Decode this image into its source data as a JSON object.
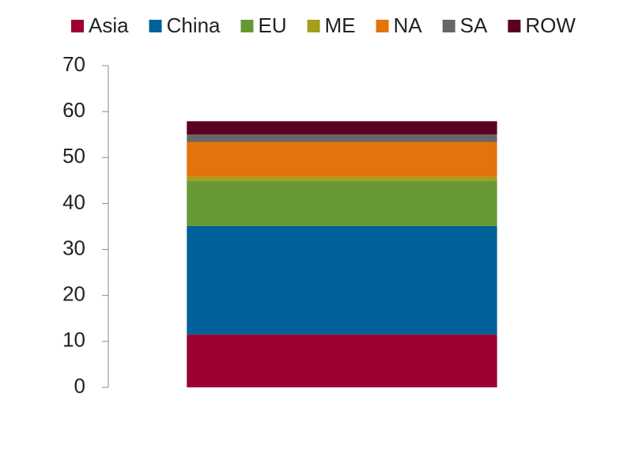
{
  "chart_data": {
    "type": "stacked-bar",
    "categories": [
      null
    ],
    "series": [
      {
        "name": "Asia",
        "color": "#9b0031",
        "values": [
          11.5
        ]
      },
      {
        "name": "China",
        "color": "#006199",
        "values": [
          23.6
        ]
      },
      {
        "name": "EU",
        "color": "#669933",
        "values": [
          9.8
        ]
      },
      {
        "name": "ME",
        "color": "#a39f18",
        "values": [
          0.9
        ]
      },
      {
        "name": "NA",
        "color": "#e3730b",
        "values": [
          7.6
        ]
      },
      {
        "name": "SA",
        "color": "#666666",
        "values": [
          1.6
        ]
      },
      {
        "name": "ROW",
        "color": "#5a0020",
        "values": [
          2.9
        ]
      }
    ],
    "ylim": [
      0,
      70
    ],
    "yticks": [
      0,
      10,
      20,
      30,
      40,
      50,
      60,
      70
    ],
    "legend": "top"
  }
}
